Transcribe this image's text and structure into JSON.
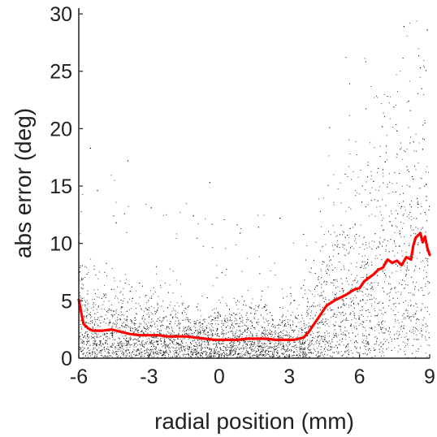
{
  "chart_data": {
    "type": "scatter",
    "title": "",
    "xlabel": "radial position (mm)",
    "ylabel": "abs error (deg)",
    "xlim": [
      -6,
      9
    ],
    "ylim": [
      0,
      30.5
    ],
    "x_ticks": [
      -6,
      -3,
      0,
      3,
      6,
      9
    ],
    "y_ticks": [
      0,
      5,
      10,
      15,
      20,
      25,
      30
    ],
    "x_tick_labels": [
      "-6",
      "-3",
      "0",
      "3",
      "6",
      "9"
    ],
    "y_tick_labels": [
      "0",
      "5",
      "10",
      "15",
      "20",
      "25",
      "30"
    ],
    "grid": false,
    "legend": "none",
    "scatter_color": "#000000",
    "line_color": "#ff0000",
    "series": [
      {
        "kind": "line",
        "x": [
          -6.0,
          -5.9,
          -5.8,
          -5.6,
          -5.4,
          -5.0,
          -4.6,
          -4.2,
          -3.8,
          -3.4,
          -3.0,
          -2.6,
          -2.2,
          -1.8,
          -1.4,
          -1.0,
          -0.6,
          -0.2,
          0.0,
          0.4,
          0.8,
          1.2,
          1.6,
          2.0,
          2.4,
          2.8,
          3.2,
          3.4,
          3.6,
          3.8,
          4.0,
          4.2,
          4.4,
          4.6,
          5.0,
          5.4,
          5.8,
          6.0,
          6.2,
          6.4,
          6.6,
          6.8,
          7.0,
          7.2,
          7.4,
          7.6,
          7.8,
          8.0,
          8.2,
          8.3,
          8.4,
          8.5,
          8.6,
          8.7,
          8.8,
          8.9,
          9.0
        ],
        "y": [
          5.1,
          4.0,
          3.0,
          2.6,
          2.4,
          2.4,
          2.5,
          2.3,
          2.1,
          2.0,
          2.0,
          2.0,
          1.9,
          1.9,
          1.9,
          1.8,
          1.7,
          1.6,
          1.6,
          1.6,
          1.6,
          1.7,
          1.7,
          1.7,
          1.6,
          1.6,
          1.6,
          1.7,
          1.8,
          2.2,
          2.8,
          3.4,
          4.0,
          4.6,
          5.1,
          5.5,
          6.0,
          6.1,
          6.7,
          7.0,
          7.3,
          7.7,
          7.9,
          8.6,
          8.3,
          8.5,
          8.1,
          8.8,
          8.6,
          9.8,
          10.5,
          10.7,
          10.9,
          10.1,
          10.6,
          9.6,
          9.0
        ]
      }
    ],
    "scatter_points": [
      [
        -5.9,
        0.6
      ],
      [
        -5.8,
        1.8
      ],
      [
        -5.7,
        3.1
      ],
      [
        -5.6,
        0.9
      ],
      [
        -5.4,
        2.7
      ],
      [
        -5.3,
        0.4
      ],
      [
        -5.1,
        1.5
      ],
      [
        -4.9,
        3.4
      ],
      [
        -4.8,
        0.8
      ],
      [
        -4.6,
        2.2
      ],
      [
        -4.5,
        4.1
      ],
      [
        -4.3,
        1.1
      ],
      [
        -4.1,
        0.3
      ],
      [
        -4.0,
        2.9
      ],
      [
        -3.8,
        1.6
      ],
      [
        -3.7,
        5.2
      ],
      [
        -3.5,
        0.7
      ],
      [
        -3.3,
        2.4
      ],
      [
        -3.2,
        1.2
      ],
      [
        -3.0,
        3.6
      ],
      [
        -2.8,
        0.5
      ],
      [
        -2.7,
        1.9
      ],
      [
        -2.5,
        2.8
      ],
      [
        -2.3,
        0.9
      ],
      [
        -2.2,
        4.4
      ],
      [
        -2.0,
        1.4
      ],
      [
        -1.8,
        0.2
      ],
      [
        -1.7,
        2.6
      ],
      [
        -1.5,
        1.0
      ],
      [
        -1.3,
        3.2
      ],
      [
        -1.2,
        0.6
      ],
      [
        -1.0,
        1.8
      ],
      [
        -0.8,
        2.3
      ],
      [
        -0.7,
        0.4
      ],
      [
        -0.5,
        1.5
      ],
      [
        -0.3,
        3.0
      ],
      [
        -0.2,
        0.8
      ],
      [
        0.0,
        1.9
      ],
      [
        0.2,
        0.5
      ],
      [
        0.3,
        2.7
      ],
      [
        0.5,
        1.1
      ],
      [
        0.7,
        3.8
      ],
      [
        0.8,
        0.3
      ],
      [
        1.0,
        1.7
      ],
      [
        1.2,
        2.5
      ],
      [
        1.3,
        0.9
      ],
      [
        1.5,
        1.3
      ],
      [
        1.7,
        4.6
      ],
      [
        1.8,
        0.6
      ],
      [
        2.0,
        2.1
      ],
      [
        2.2,
        1.0
      ],
      [
        2.3,
        3.3
      ],
      [
        2.5,
        0.4
      ],
      [
        2.7,
        1.6
      ],
      [
        2.8,
        2.9
      ],
      [
        3.0,
        0.7
      ],
      [
        3.2,
        1.4
      ],
      [
        3.3,
        3.5
      ],
      [
        3.5,
        0.9
      ],
      [
        3.7,
        2.2
      ],
      [
        3.8,
        4.9
      ],
      [
        4.0,
        1.8
      ],
      [
        4.2,
        6.3
      ],
      [
        4.3,
        3.1
      ],
      [
        4.5,
        0.8
      ],
      [
        4.6,
        7.4
      ],
      [
        4.8,
        4.2
      ],
      [
        5.0,
        2.0
      ],
      [
        5.1,
        9.1
      ],
      [
        5.3,
        5.5
      ],
      [
        5.5,
        1.2
      ],
      [
        5.6,
        11.3
      ],
      [
        5.8,
        6.8
      ],
      [
        6.0,
        3.4
      ],
      [
        6.1,
        13.6
      ],
      [
        6.3,
        8.2
      ],
      [
        6.5,
        2.6
      ],
      [
        6.6,
        15.4
      ],
      [
        6.8,
        9.7
      ],
      [
        7.0,
        4.8
      ],
      [
        7.1,
        17.1
      ],
      [
        7.3,
        11.9
      ],
      [
        7.5,
        6.1
      ],
      [
        7.6,
        19.8
      ],
      [
        7.8,
        13.2
      ],
      [
        8.0,
        7.3
      ],
      [
        8.1,
        22.4
      ],
      [
        8.3,
        15.6
      ],
      [
        8.5,
        9.9
      ],
      [
        8.6,
        25.3
      ],
      [
        8.7,
        18.2
      ],
      [
        8.8,
        12.7
      ],
      [
        8.9,
        28.6
      ],
      [
        8.4,
        3.9
      ],
      [
        7.9,
        28.9
      ],
      [
        -5.5,
        18.3
      ],
      [
        -5.2,
        14.6
      ],
      [
        -4.4,
        11.8
      ],
      [
        -2.9,
        13.1
      ],
      [
        -1.1,
        12.4
      ],
      [
        0.9,
        10.9
      ],
      [
        2.6,
        12.2
      ],
      [
        -3.9,
        17.2
      ],
      [
        -0.4,
        15.3
      ]
    ]
  }
}
